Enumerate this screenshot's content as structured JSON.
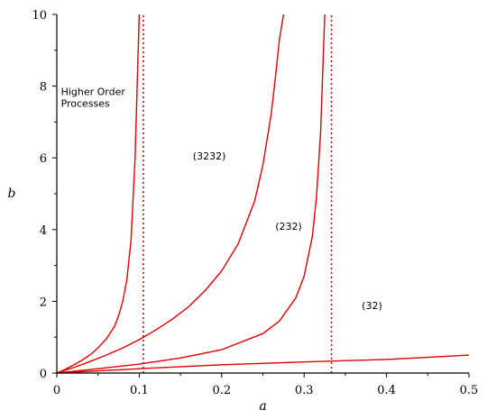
{
  "chart_data": {
    "type": "line",
    "title": "",
    "xlabel": "a",
    "ylabel": "b",
    "xlim": [
      0,
      0.5
    ],
    "ylim": [
      0,
      10
    ],
    "x_ticks": [
      "0",
      "0.1",
      "0.2",
      "0.3",
      "0.4",
      "0.5"
    ],
    "y_ticks": [
      "0",
      "2",
      "4",
      "6",
      "8",
      "10"
    ],
    "grid": false,
    "legend": "none",
    "colors": {
      "curve": "#e00000",
      "axis": "#000000"
    },
    "series": [
      {
        "style": "solid",
        "x": [
          0,
          0.01,
          0.02,
          0.03,
          0.04,
          0.05,
          0.06,
          0.07,
          0.075,
          0.08,
          0.085,
          0.09,
          0.095,
          0.1
        ],
        "y": [
          0,
          0.1,
          0.22,
          0.35,
          0.5,
          0.7,
          0.95,
          1.3,
          1.6,
          2.0,
          2.6,
          3.7,
          6.0,
          10
        ]
      },
      {
        "style": "solid",
        "x": [
          0,
          0.02,
          0.04,
          0.06,
          0.08,
          0.1,
          0.12,
          0.14,
          0.16,
          0.18,
          0.2,
          0.22,
          0.24,
          0.25,
          0.26,
          0.265,
          0.27,
          0.275
        ],
        "y": [
          0,
          0.15,
          0.32,
          0.5,
          0.7,
          0.93,
          1.2,
          1.5,
          1.85,
          2.3,
          2.85,
          3.6,
          4.8,
          5.8,
          7.2,
          8.2,
          9.3,
          10
        ]
      },
      {
        "style": "solid",
        "x": [
          0,
          0.05,
          0.1,
          0.15,
          0.2,
          0.25,
          0.27,
          0.29,
          0.3,
          0.31,
          0.315,
          0.32,
          0.325
        ],
        "y": [
          0,
          0.12,
          0.25,
          0.42,
          0.65,
          1.1,
          1.45,
          2.1,
          2.7,
          3.8,
          4.9,
          6.7,
          10
        ]
      },
      {
        "style": "solid",
        "x": [
          0,
          0.1,
          0.2,
          0.3,
          0.4,
          0.5
        ],
        "y": [
          0,
          0.12,
          0.23,
          0.31,
          0.38,
          0.5
        ]
      },
      {
        "style": "dotted",
        "x": [
          0.105,
          0.105
        ],
        "y": [
          0,
          10
        ]
      },
      {
        "style": "dotted",
        "x": [
          0.3333,
          0.3333
        ],
        "y": [
          0,
          10
        ]
      }
    ],
    "annotations": [
      {
        "lines": [
          "Higher Order",
          "Processes"
        ],
        "x": 0.005,
        "y": 7.75
      },
      {
        "lines": [
          "(3232)"
        ],
        "x": 0.165,
        "y": 5.95
      },
      {
        "lines": [
          "(232)"
        ],
        "x": 0.265,
        "y": 4.0
      },
      {
        "lines": [
          "(32)"
        ],
        "x": 0.37,
        "y": 1.78
      }
    ]
  }
}
